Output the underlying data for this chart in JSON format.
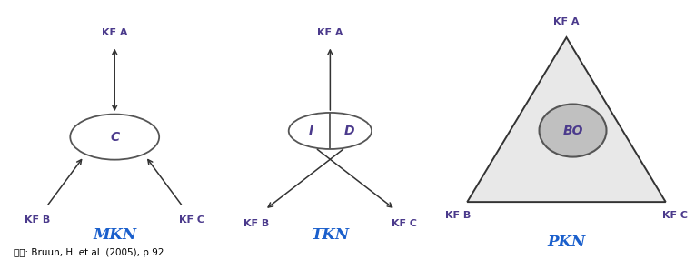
{
  "bg_color": "#ffffff",
  "label_color": "#4B3A8C",
  "title_color": "#1a5fcc",
  "source_text": "자료: Bruun, H. et al. (2005), p.92",
  "mkn_label": "MKN",
  "tkn_label": "TKN",
  "pkn_label": "PKN",
  "kfa_label": "KF A",
  "kfb_label": "KF B",
  "kfc_label": "KF C",
  "node_c": "C",
  "node_i": "I",
  "node_d": "D",
  "node_bo": "BO",
  "arrow_color": "#333333",
  "tri_fill": "#e8e8e8",
  "bo_fill": "#c0c0c0",
  "bo_edge": "#555555"
}
